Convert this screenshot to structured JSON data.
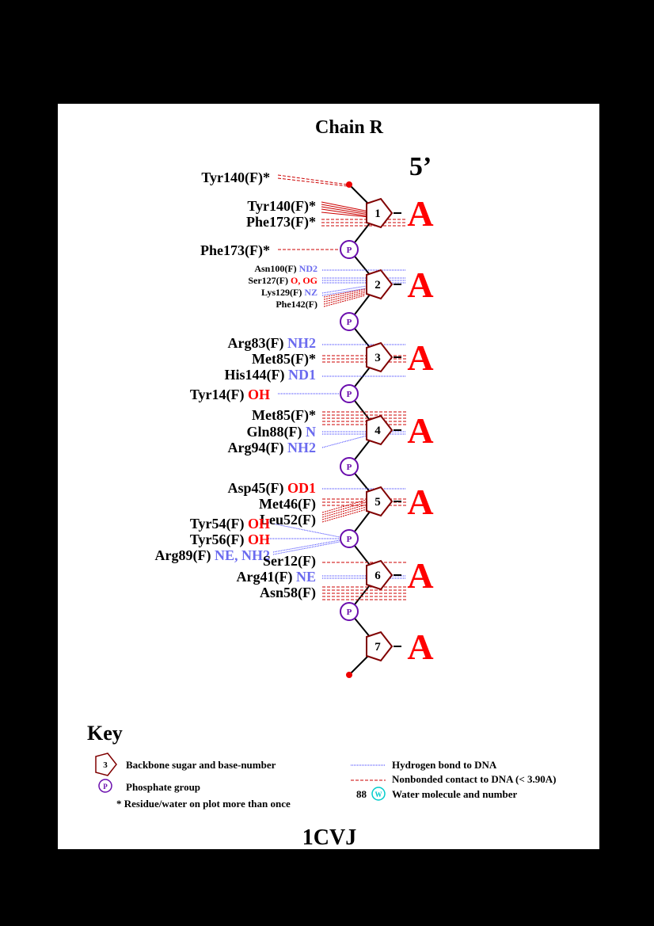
{
  "title": "Chain R",
  "strand_end": "5’",
  "colors": {
    "sugar": "#800000",
    "phosphate": "#6a0dad",
    "hbond": "#3333ff",
    "nonbonded": "#cc0000",
    "base": "#ff0000",
    "atom_blue": "#6b6bef",
    "atom_red": "#ff0000",
    "water": "#00cccc"
  },
  "nucleotides": [
    {
      "number": "1",
      "base": "A"
    },
    {
      "number": "2",
      "base": "A"
    },
    {
      "number": "3",
      "base": "A"
    },
    {
      "number": "4",
      "base": "A"
    },
    {
      "number": "5",
      "base": "A"
    },
    {
      "number": "6",
      "base": "A"
    },
    {
      "number": "7",
      "base": "A"
    }
  ],
  "phosphate_label": "P",
  "residue_labels": [
    {
      "res": "Tyr140(F)*",
      "atom": ""
    },
    {
      "res": "Tyr140(F)*",
      "atom": ""
    },
    {
      "res": "Phe173(F)*",
      "atom": ""
    },
    {
      "res": "Phe173(F)*",
      "atom": ""
    },
    {
      "res": "Asn100(F)",
      "atom": "ND2"
    },
    {
      "res": "Ser127(F)",
      "atom": "O, OG"
    },
    {
      "res": "Lys129(F)",
      "atom": "NZ"
    },
    {
      "res": "Phe142(F)",
      "atom": ""
    },
    {
      "res": "Arg83(F)",
      "atom": "NH2"
    },
    {
      "res": "Met85(F)*",
      "atom": ""
    },
    {
      "res": "His144(F)",
      "atom": "ND1"
    },
    {
      "res": "Tyr14(F)",
      "atom": "OH"
    },
    {
      "res": "Met85(F)*",
      "atom": ""
    },
    {
      "res": "Gln88(F)",
      "atom": "N"
    },
    {
      "res": "Arg94(F)",
      "atom": "NH2"
    },
    {
      "res": "Asp45(F)",
      "atom": "OD1"
    },
    {
      "res": "Met46(F)",
      "atom": ""
    },
    {
      "res": "Leu52(F)",
      "atom": ""
    },
    {
      "res": "Tyr54(F)",
      "atom": "OH"
    },
    {
      "res": "Tyr56(F)",
      "atom": "OH"
    },
    {
      "res": "Arg89(F)",
      "atom": "NE, NH2"
    },
    {
      "res": "Ser12(F)",
      "atom": ""
    },
    {
      "res": "Arg41(F)",
      "atom": "NE"
    },
    {
      "res": "Asn58(F)",
      "atom": ""
    }
  ],
  "key": {
    "title": "Key",
    "sugar_sample": "3",
    "sugar_text": "Backbone sugar and base-number",
    "phosphate_sample": "P",
    "phosphate_text": "Phosphate group",
    "star_text": "* Residue/water on plot more than once",
    "hbond_text": "Hydrogen bond to DNA",
    "nonbonded_text": "Nonbonded contact to DNA (< 3.90A)",
    "water_number": "88",
    "water_sample": "W",
    "water_text": "Water molecule and number"
  },
  "pdb_id": "1CVJ"
}
